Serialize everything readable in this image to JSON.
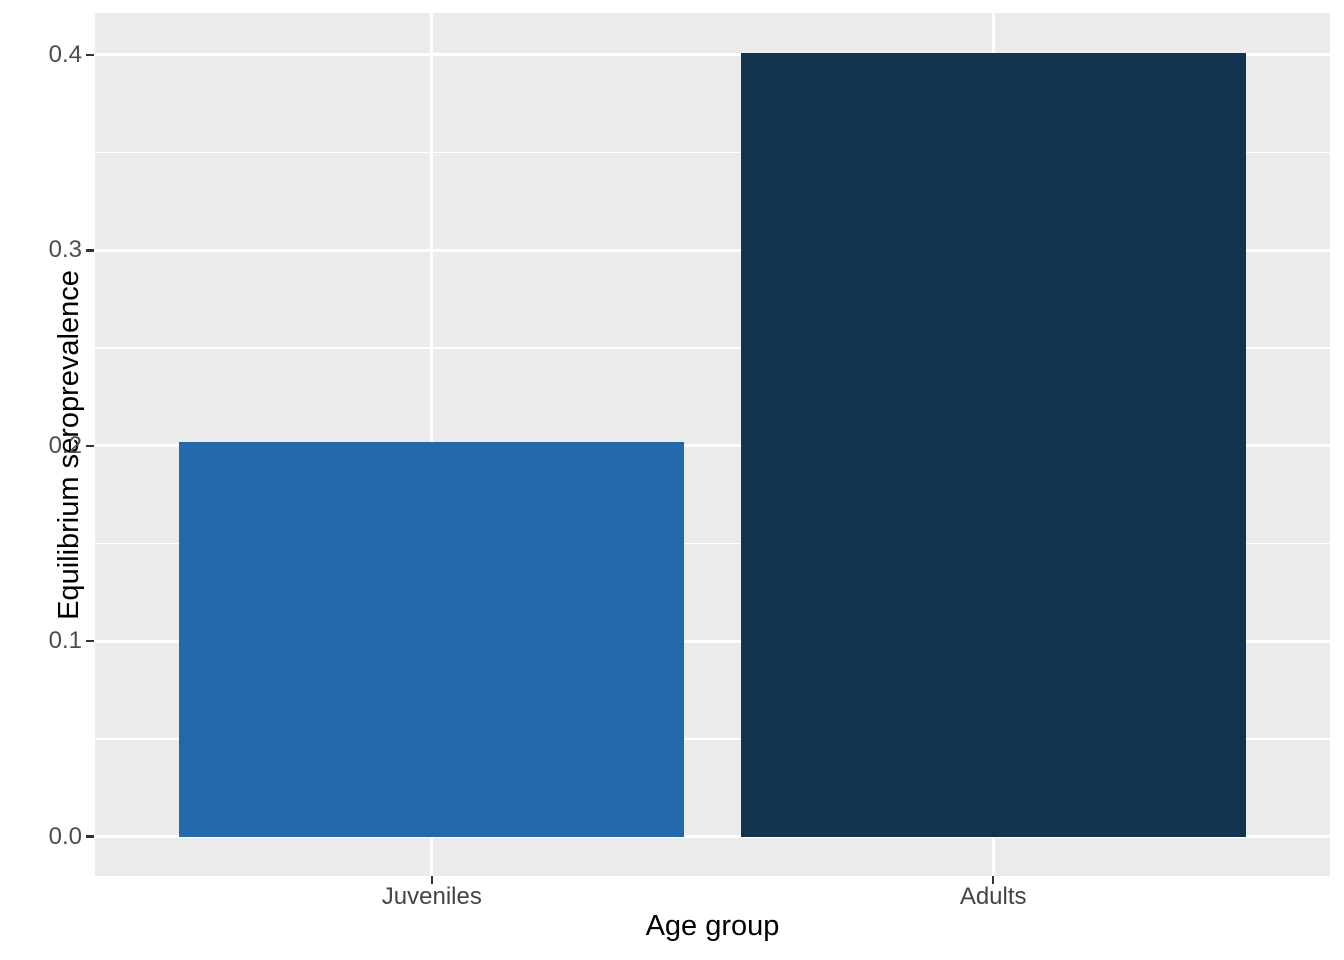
{
  "chart_data": {
    "type": "bar",
    "title": "",
    "xlabel": "Age group",
    "ylabel": "Equilibrium seroprevalence",
    "categories": [
      "Juveniles",
      "Adults"
    ],
    "values": [
      0.202,
      0.401
    ],
    "bar_colors": [
      "#2369A9",
      "#12334F"
    ],
    "ylim": [
      -0.0201,
      0.4214
    ],
    "y_major_ticks": [
      0.0,
      0.1,
      0.2,
      0.3,
      0.4
    ],
    "y_tick_labels": [
      "0.0",
      "0.1",
      "0.2",
      "0.3",
      "0.4"
    ],
    "y_minor_ticks": [
      0.05,
      0.15,
      0.25,
      0.35
    ],
    "legend": "none",
    "grid": "white major and minor horizontal gridlines, white vertical gridlines at category centers, on grey panel",
    "style": {
      "panel_background": "#EBEBEB",
      "grid_color": "#FFFFFF",
      "tick_mark_color": "#333333",
      "tick_label_color": "#4D4D4D",
      "axis_title_color": "#000000",
      "figure_background": "#FFFFFF"
    }
  }
}
